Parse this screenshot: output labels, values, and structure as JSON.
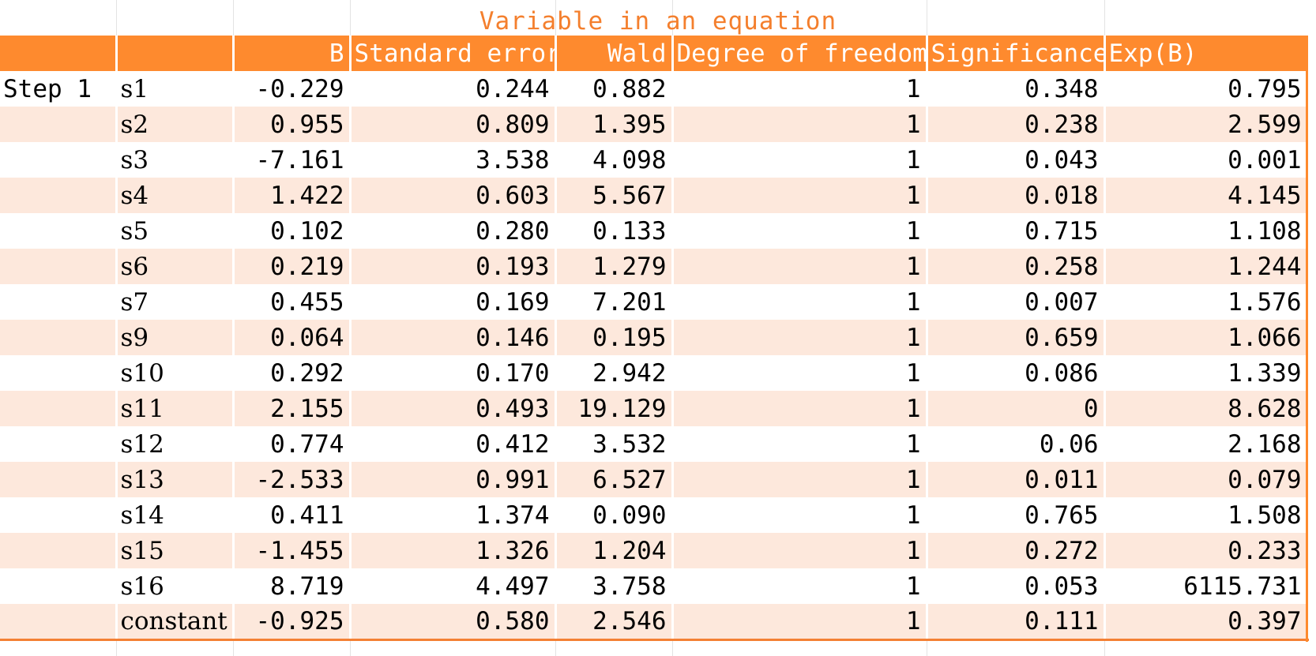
{
  "title": "Variable in an equation",
  "columns": [
    "",
    "",
    "B",
    "Standard error",
    "Wald",
    "Degree of freedom",
    "Significance",
    "Exp(B)"
  ],
  "step_label": "Step 1",
  "rows": [
    {
      "var": "s1",
      "b": "-0.229",
      "se": "0.244",
      "wald": "0.882",
      "df": "1",
      "sig": "0.348",
      "exp": "0.795"
    },
    {
      "var": "s2",
      "b": "0.955",
      "se": "0.809",
      "wald": "1.395",
      "df": "1",
      "sig": "0.238",
      "exp": "2.599"
    },
    {
      "var": "s3",
      "b": "-7.161",
      "se": "3.538",
      "wald": "4.098",
      "df": "1",
      "sig": "0.043",
      "exp": "0.001"
    },
    {
      "var": "s4",
      "b": "1.422",
      "se": "0.603",
      "wald": "5.567",
      "df": "1",
      "sig": "0.018",
      "exp": "4.145"
    },
    {
      "var": "s5",
      "b": "0.102",
      "se": "0.280",
      "wald": "0.133",
      "df": "1",
      "sig": "0.715",
      "exp": "1.108"
    },
    {
      "var": "s6",
      "b": "0.219",
      "se": "0.193",
      "wald": "1.279",
      "df": "1",
      "sig": "0.258",
      "exp": "1.244"
    },
    {
      "var": "s7",
      "b": "0.455",
      "se": "0.169",
      "wald": "7.201",
      "df": "1",
      "sig": "0.007",
      "exp": "1.576"
    },
    {
      "var": "s9",
      "b": "0.064",
      "se": "0.146",
      "wald": "0.195",
      "df": "1",
      "sig": "0.659",
      "exp": "1.066"
    },
    {
      "var": "s10",
      "b": "0.292",
      "se": "0.170",
      "wald": "2.942",
      "df": "1",
      "sig": "0.086",
      "exp": "1.339"
    },
    {
      "var": "s11",
      "b": "2.155",
      "se": "0.493",
      "wald": "19.129",
      "df": "1",
      "sig": "0",
      "exp": "8.628"
    },
    {
      "var": "s12",
      "b": "0.774",
      "se": "0.412",
      "wald": "3.532",
      "df": "1",
      "sig": "0.06",
      "exp": "2.168"
    },
    {
      "var": "s13",
      "b": "-2.533",
      "se": "0.991",
      "wald": "6.527",
      "df": "1",
      "sig": "0.011",
      "exp": "0.079"
    },
    {
      "var": "s14",
      "b": "0.411",
      "se": "1.374",
      "wald": "0.090",
      "df": "1",
      "sig": "0.765",
      "exp": "1.508"
    },
    {
      "var": "s15",
      "b": "-1.455",
      "se": "1.326",
      "wald": "1.204",
      "df": "1",
      "sig": "0.272",
      "exp": "0.233"
    },
    {
      "var": "s16",
      "b": "8.719",
      "se": "4.497",
      "wald": "3.758",
      "df": "1",
      "sig": "0.053",
      "exp": "6115.731"
    },
    {
      "var": "constant",
      "b": "-0.925",
      "se": "0.580",
      "wald": "2.546",
      "df": "1",
      "sig": "0.111",
      "exp": "0.397"
    }
  ],
  "colors": {
    "header_bg": "#fe8a2e",
    "title_text": "#f47f2d",
    "band": "#fde8dc"
  }
}
